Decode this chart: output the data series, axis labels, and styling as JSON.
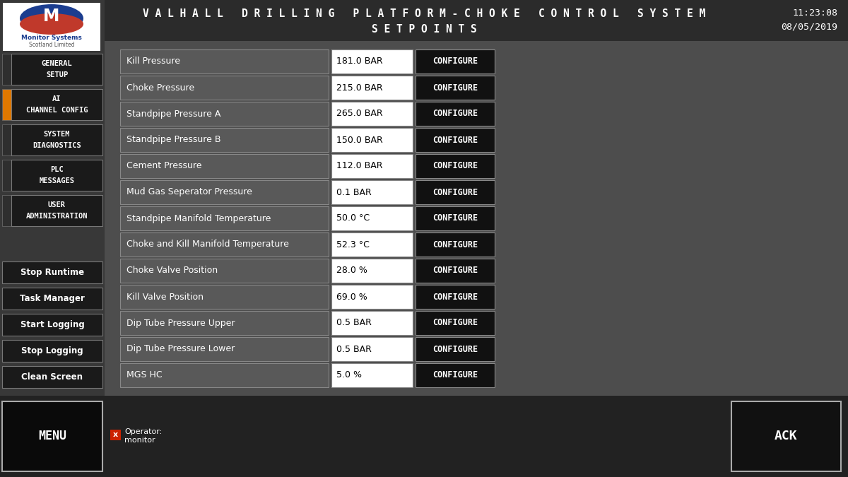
{
  "title_line1": "V A L H A L L   D R I L L I N G   P L A T F O R M - C H O K E   C O N T R O L   S Y S T E M",
  "title_line2": "S E T P O I N T S",
  "time_str": "11:23:08",
  "date_str": "08/05/2019",
  "bg_color": "#3d3d3d",
  "header_bg": "#2b2b2b",
  "panel_bg": "#4d4d4d",
  "sidebar_bg": "#383838",
  "row_label_bg": "#595959",
  "value_bg": "#ffffff",
  "configure_bg": "#111111",
  "configure_border": "#888888",
  "sidebar_button_bg": "#1a1a1a",
  "sidebar_button_border": "#777777",
  "orange_indicator": "#e07800",
  "menu_bg": "#0a0a0a",
  "ack_bg": "#111111",
  "footer_bg": "#222222",
  "rows": [
    {
      "label": "Kill Pressure",
      "value": "181.0 BAR"
    },
    {
      "label": "Choke Pressure",
      "value": "215.0 BAR"
    },
    {
      "label": "Standpipe Pressure A",
      "value": "265.0 BAR"
    },
    {
      "label": "Standpipe Pressure B",
      "value": "150.0 BAR"
    },
    {
      "label": "Cement Pressure",
      "value": "112.0 BAR"
    },
    {
      "label": "Mud Gas Seperator Pressure",
      "value": "0.1 BAR"
    },
    {
      "label": "Standpipe Manifold Temperature",
      "value": "50.0 °C"
    },
    {
      "label": "Choke and Kill Manifold Temperature",
      "value": "52.3 °C"
    },
    {
      "label": "Choke Valve Position",
      "value": "28.0 %"
    },
    {
      "label": "Kill Valve Position",
      "value": "69.0 %"
    },
    {
      "label": "Dip Tube Pressure Upper",
      "value": "0.5 BAR"
    },
    {
      "label": "Dip Tube Pressure Lower",
      "value": "0.5 BAR"
    },
    {
      "label": "MGS HC",
      "value": "5.0 %"
    }
  ],
  "sidebar_top_buttons": [
    {
      "text": "GENERAL\nSETUP",
      "indicator": false
    },
    {
      "text": "AI\nCHANNEL CONFIG",
      "indicator": true
    },
    {
      "text": "SYSTEM\nDIAGNOSTICS",
      "indicator": false
    },
    {
      "text": "PLC\nMESSAGES",
      "indicator": false
    },
    {
      "text": "USER\nADMINISTRATION",
      "indicator": false
    }
  ],
  "sidebar_bottom_buttons": [
    "Stop Runtime",
    "Task Manager",
    "Start Logging",
    "Stop Logging",
    "Clean Screen"
  ],
  "operator_label": "Operator:",
  "operator_name": "monitor"
}
